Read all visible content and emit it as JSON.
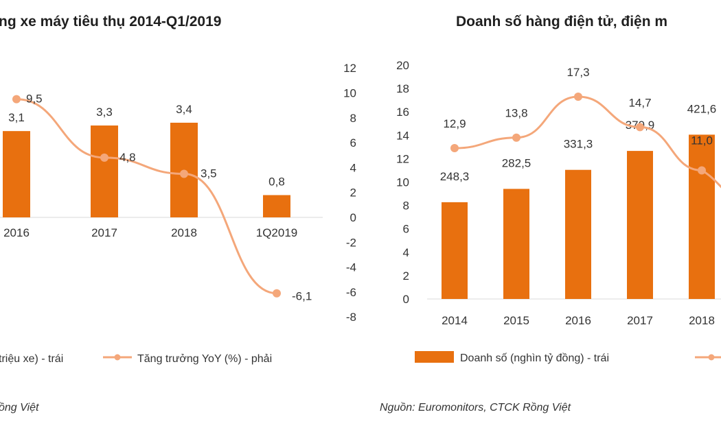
{
  "colors": {
    "bar": "#E8700F",
    "line": "#F4A77A",
    "zero": "#D9D9D9"
  },
  "chart_data": [
    {
      "type": "bar",
      "title": "ng xe máy tiêu thụ 2014-Q1/2019",
      "categories": [
        "2016",
        "2017",
        "2018",
        "1Q2019"
      ],
      "series": [
        {
          "name": "triệu xe) - trái",
          "axis": "left",
          "kind": "bar",
          "values": [
            3.1,
            3.3,
            3.4,
            0.8
          ],
          "labels": [
            "3,1",
            "3,3",
            "3,4",
            "0,8"
          ]
        },
        {
          "name": "Tăng trưởng YoY (%) - phải",
          "axis": "right",
          "kind": "line",
          "values": [
            9.5,
            4.8,
            3.5,
            -6.1
          ],
          "labels": [
            "9,5",
            "4,8",
            "3,5",
            "-6,1"
          ]
        }
      ],
      "y_right": {
        "ylim": [
          -8,
          12
        ],
        "ticks": [
          "12",
          "10",
          "8",
          "6",
          "4",
          "2",
          "0",
          "-2",
          "-4",
          "-6",
          "-8"
        ]
      },
      "y_left": {
        "ylim": [
          -2.667,
          4
        ]
      },
      "source": "ồng Việt"
    },
    {
      "type": "bar",
      "title": "Doanh số hàng điện tử, điện m",
      "categories": [
        "2014",
        "2015",
        "2016",
        "2017",
        "2018"
      ],
      "series": [
        {
          "name": "Doanh số (nghìn tỷ đồng) - trái",
          "axis": "left",
          "kind": "bar",
          "values": [
            248.3,
            282.5,
            331.3,
            379.9,
            421.6
          ],
          "labels": [
            "248,3",
            "282,5",
            "331,3",
            "379,9",
            "421,6"
          ]
        },
        {
          "name": "",
          "axis": "right",
          "kind": "line",
          "values": [
            12.9,
            13.8,
            17.3,
            14.7,
            11.0
          ],
          "labels": [
            "12,9",
            "13,8",
            "17,3",
            "14,7",
            "11,0"
          ]
        }
      ],
      "y_left": {
        "ylim": [
          0,
          20
        ],
        "ticks": [
          "20",
          "18",
          "16",
          "14",
          "12",
          "10",
          "8",
          "6",
          "4",
          "2",
          "0"
        ],
        "bar_scale": 30
      },
      "source": "Nguồn: Euromonitors, CTCK Rồng Việt"
    }
  ]
}
